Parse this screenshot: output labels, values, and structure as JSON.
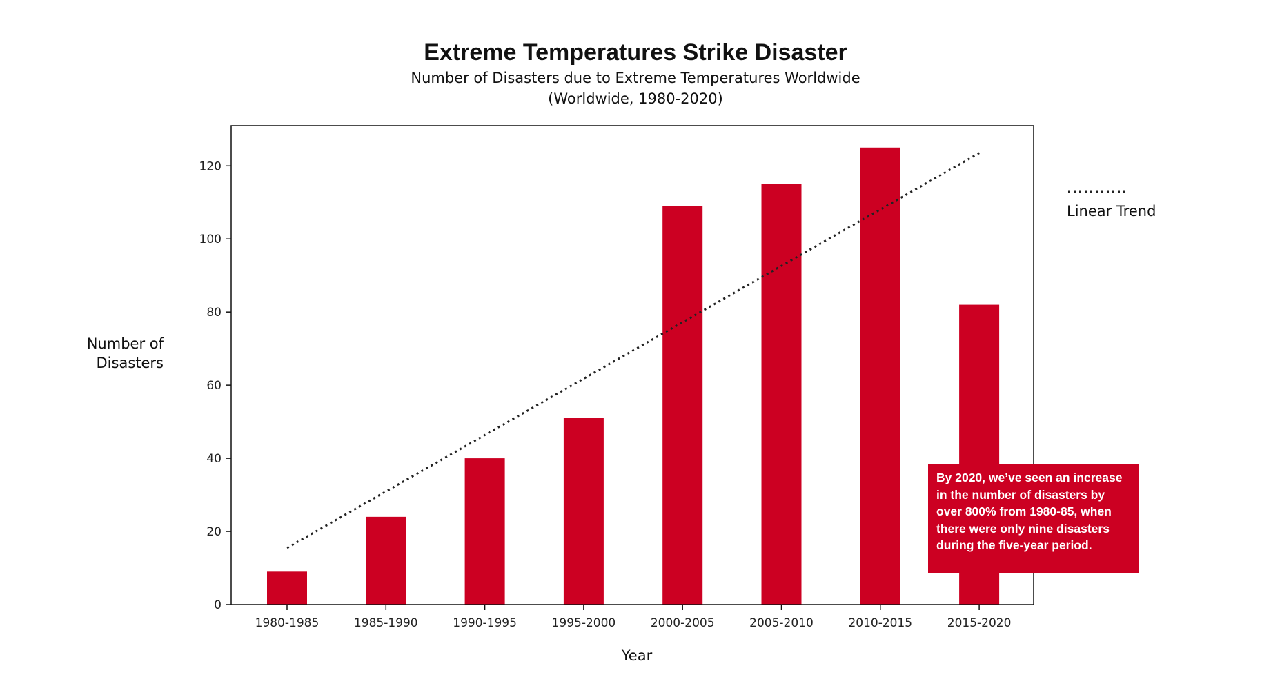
{
  "chart_data": {
    "type": "bar",
    "title": "Extreme Temperatures Strike Disaster",
    "subtitle_line1": "Number of Disasters due to Extreme Temperatures Worldwide",
    "subtitle_line2": "(Worldwide, 1980-2020)",
    "xlabel": "Year",
    "ylabel_line1": "Number of",
    "ylabel_line2": "Disasters",
    "categories": [
      "1980-1985",
      "1985-1990",
      "1990-1995",
      "1995-2000",
      "2000-2005",
      "2005-2010",
      "2010-2015",
      "2015-2020"
    ],
    "values": [
      9,
      24,
      40,
      51,
      109,
      115,
      125,
      82
    ],
    "ylim": [
      0,
      131
    ],
    "yticks": [
      0,
      20,
      40,
      60,
      80,
      100,
      120
    ],
    "trend": {
      "name": "Linear Trend",
      "start": 15.5,
      "end": 123.5,
      "style": "dotted"
    },
    "legend_position": "right",
    "grid": false,
    "bar_color": "#cc0022",
    "annotation": "By 2020, we’ve seen an increase in the number of disasters by over 800% from 1980-85, when there were only nine disasters during the five-year period."
  }
}
